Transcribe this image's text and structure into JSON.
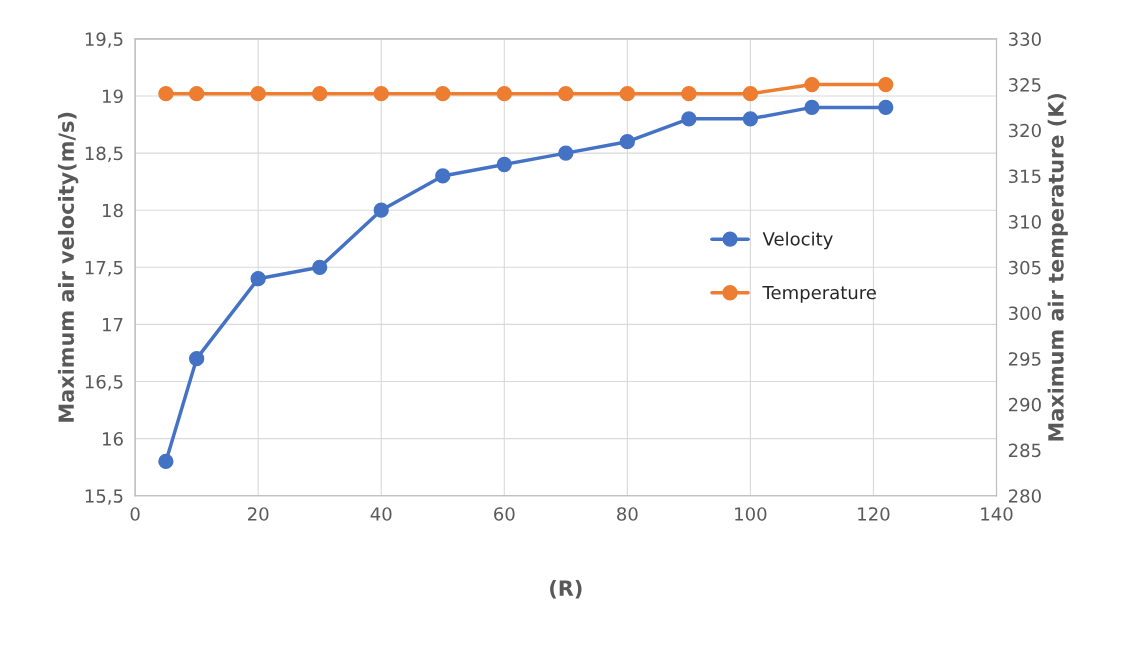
{
  "chart_data": {
    "type": "line",
    "xlabel": "(R)",
    "ylabel": "Maximum air velocity(m/s)",
    "y2label": "Maximum air temperature (K)",
    "x": [
      5,
      10,
      20,
      30,
      40,
      50,
      60,
      70,
      80,
      90,
      100,
      110,
      122
    ],
    "series": [
      {
        "name": "Velocity",
        "color": "#4472c4",
        "values": [
          15.8,
          16.7,
          17.4,
          17.5,
          18.0,
          18.3,
          18.4,
          18.5,
          18.6,
          18.8,
          18.8,
          18.9,
          18.9
        ]
      },
      {
        "name": "Temperature",
        "color": "#ed7d31",
        "axis": "y2",
        "values": [
          324,
          324,
          324,
          324,
          324,
          324,
          324,
          324,
          324,
          324,
          324,
          325,
          325
        ]
      }
    ],
    "xlim": [
      0,
      140
    ],
    "xticks": [
      0,
      20,
      40,
      60,
      80,
      100,
      120,
      140
    ],
    "ylim": [
      15.5,
      19.5
    ],
    "yticks": [
      {
        "value": 15.5,
        "label": "15,5"
      },
      16,
      {
        "value": 16.5,
        "label": "16,5"
      },
      17,
      {
        "value": 17.5,
        "label": "17,5"
      },
      18,
      {
        "value": 18.5,
        "label": "18,5"
      },
      19,
      {
        "value": 19.5,
        "label": "19,5"
      }
    ],
    "y2lim": [
      280,
      330
    ],
    "y2ticks": [
      280,
      285,
      290,
      295,
      300,
      305,
      310,
      315,
      320,
      325,
      330
    ],
    "grid": true,
    "legend": "center right",
    "marker": "circle",
    "line_style": "solid"
  }
}
